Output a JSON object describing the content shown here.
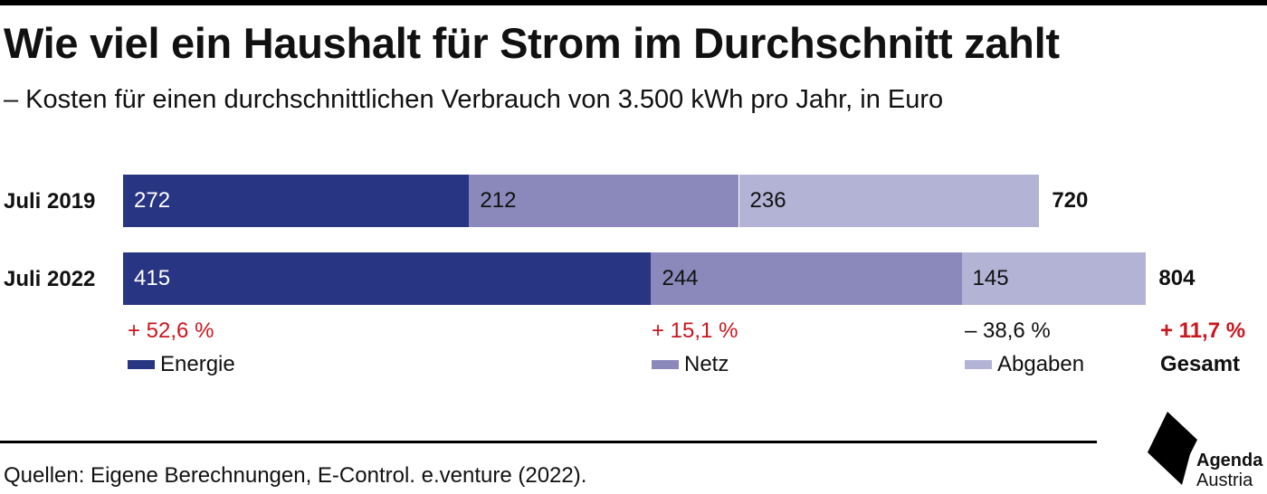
{
  "title": "Wie viel ein Haushalt für Strom im Durchschnitt zahlt",
  "subtitle": "– Kosten für einen durchschnittlichen Verbrauch von 3.500 kWh pro Jahr, in Euro",
  "colors": {
    "energie": "#283583",
    "netz": "#8b89bb",
    "abgaben": "#b3b3d6",
    "increase": "#c8171e",
    "decrease": "#111111"
  },
  "chart_data": {
    "type": "bar",
    "orientation": "horizontal",
    "stacked": true,
    "categories": [
      "Juli 2019",
      "Juli 2022"
    ],
    "series": [
      {
        "name": "Energie",
        "values": [
          272,
          415
        ]
      },
      {
        "name": "Netz",
        "values": [
          212,
          244
        ]
      },
      {
        "name": "Abgaben",
        "values": [
          236,
          145
        ]
      }
    ],
    "totals": [
      "720",
      "804"
    ],
    "changes": {
      "energie": "+ 52,6 %",
      "netz": "+ 15,1 %",
      "abgaben": "– 38,6 %",
      "gesamt": "+ 11,7 %"
    },
    "total_label": "Gesamt"
  },
  "footer": {
    "source": "Quellen: Eigene Berechnungen, E-Control. e.venture (2022)."
  },
  "logo": {
    "line1": "Agenda",
    "line2": "Austria"
  }
}
